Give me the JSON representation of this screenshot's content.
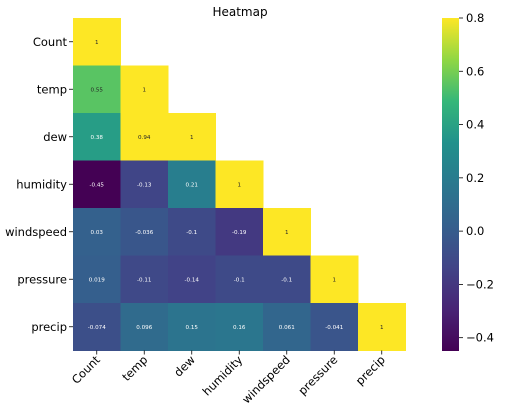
{
  "chart_data": {
    "type": "heatmap",
    "title": "Heatmap",
    "variables": [
      "Count",
      "temp",
      "dew",
      "humidity",
      "windspeed",
      "pressure",
      "precip"
    ],
    "mask": "upper-triangle",
    "matrix": [
      [
        1
      ],
      [
        0.55,
        1
      ],
      [
        0.38,
        0.94,
        1
      ],
      [
        -0.45,
        -0.13,
        0.21,
        1
      ],
      [
        0.03,
        -0.036,
        -0.1,
        -0.19,
        1
      ],
      [
        0.019,
        -0.11,
        -0.14,
        -0.1,
        -0.1,
        1
      ],
      [
        -0.074,
        0.096,
        0.15,
        0.16,
        0.061,
        -0.041,
        1
      ]
    ],
    "cell_labels": [
      [
        "1"
      ],
      [
        "0.55",
        "1"
      ],
      [
        "0.38",
        "0.94",
        "1"
      ],
      [
        "-0.45",
        "-0.13",
        "0.21",
        "1"
      ],
      [
        "0.03",
        "-0.036",
        "-0.1",
        "-0.19",
        "1"
      ],
      [
        "0.019",
        "-0.11",
        "-0.14",
        "-0.1",
        "-0.1",
        "1"
      ],
      [
        "-0.074",
        "0.096",
        "0.15",
        "0.16",
        "0.061",
        "-0.041",
        "1"
      ]
    ],
    "colormap": "viridis",
    "vmin": -0.45,
    "vmax": 0.8,
    "colorbar": {
      "ticks": [
        -0.4,
        -0.2,
        0.0,
        0.2,
        0.4,
        0.6,
        0.8
      ],
      "tick_labels": [
        "−0.4",
        "−0.2",
        "0.0",
        "0.2",
        "0.4",
        "0.6",
        "0.8"
      ]
    },
    "grid": false
  }
}
